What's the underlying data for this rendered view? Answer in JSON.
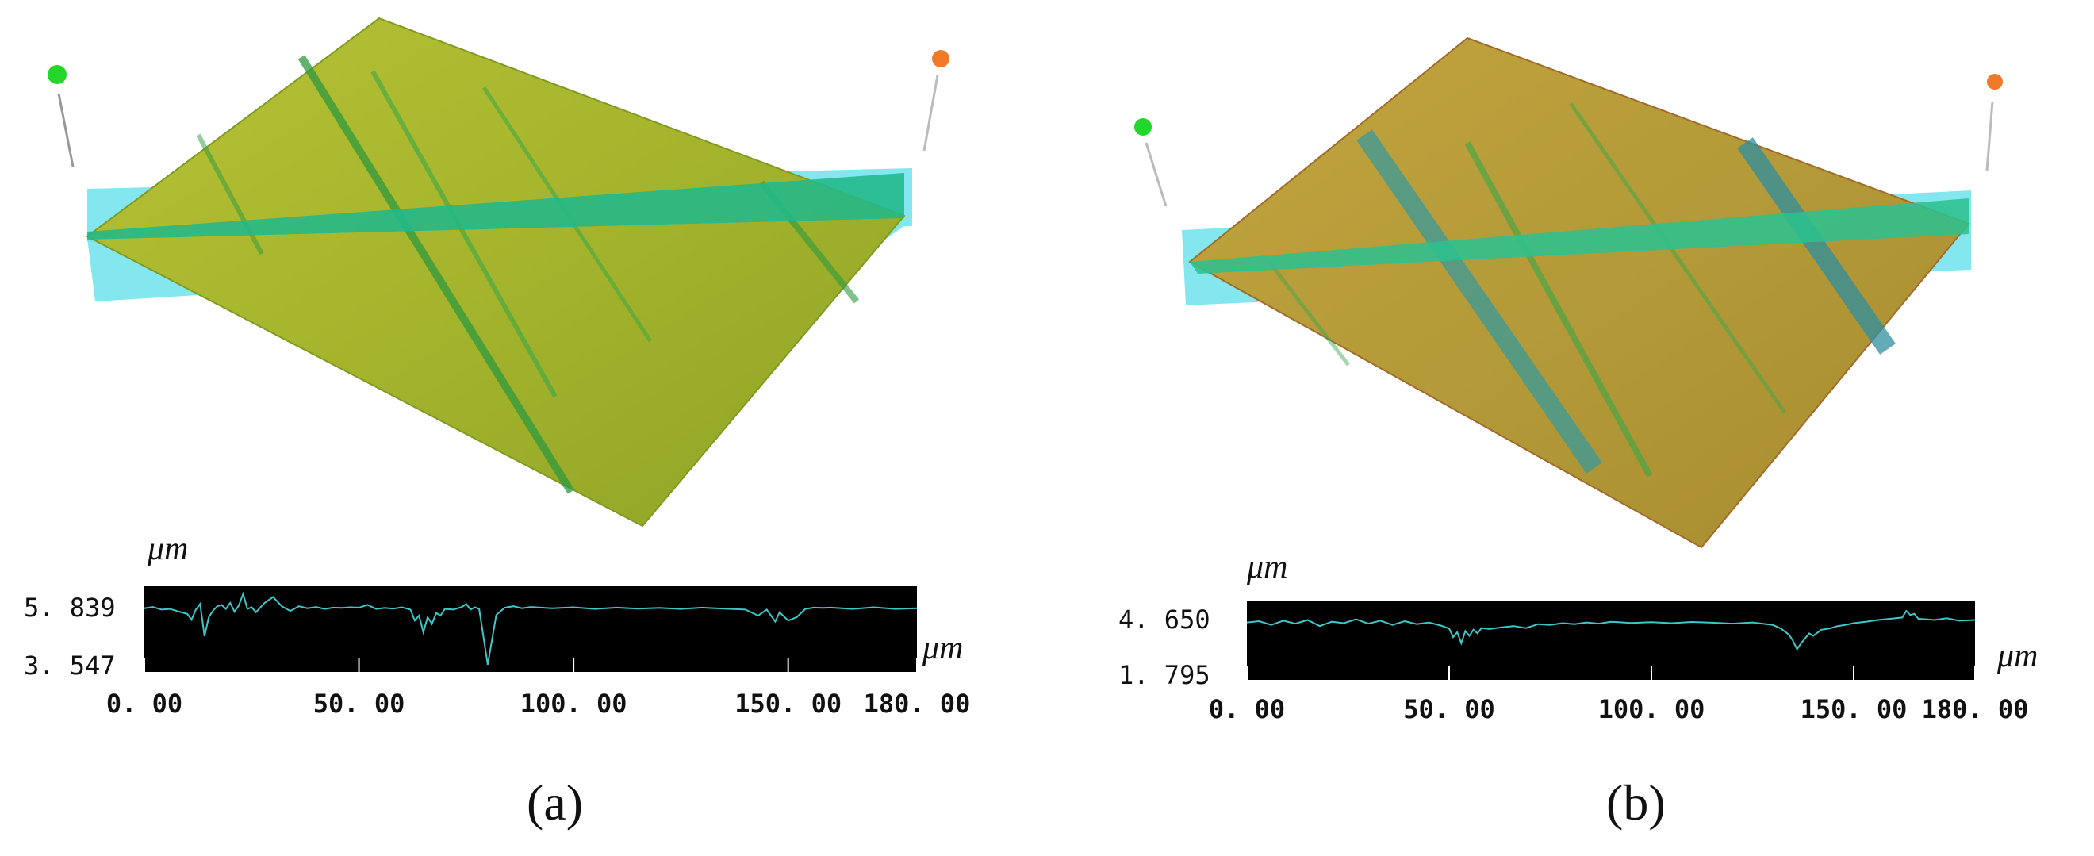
{
  "figure": {
    "panel_a_label": "(a)",
    "panel_b_label": "(b)"
  },
  "panels": [
    {
      "id": "a",
      "surface_colors": {
        "base": "#a5b42c",
        "dark": "#7f9a22",
        "band": "#21b88a",
        "scan_plane": "#6fe3ec",
        "groove": "#2f9a3e"
      },
      "marker_colors": {
        "start": "#22d62a",
        "end": "#f07a2a"
      }
    },
    {
      "id": "b",
      "surface_colors": {
        "base": "#b3a33a",
        "dark": "#a06b2a",
        "band": "#2cc08e",
        "scan_plane": "#6fe3ec",
        "groove": "#3a9a9a"
      },
      "marker_colors": {
        "start": "#22d62a",
        "end": "#f07a2a"
      }
    }
  ],
  "chart_data": [
    {
      "type": "line",
      "title": "",
      "x_unit_label": "μm",
      "y_unit_label": "μm",
      "x_tick_labels": [
        "0. 00",
        "50. 00",
        "100. 00",
        "150. 00",
        "180. 00"
      ],
      "x_ticks": [
        0,
        50,
        100,
        150,
        180
      ],
      "y_tick_labels": [
        "5. 839",
        "3. 547"
      ],
      "ylim": [
        3.547,
        5.839
      ],
      "xlim": [
        0,
        180
      ],
      "grid": false,
      "background": "#000000",
      "line_color": "#3fc6c8",
      "series": [
        {
          "x": [
            0,
            2,
            4,
            6,
            8,
            10,
            11,
            12,
            13,
            14,
            15,
            16,
            17,
            18,
            19,
            20,
            21,
            22,
            23,
            24,
            25,
            26,
            28,
            30,
            32,
            34,
            36,
            38,
            40,
            42,
            44,
            46,
            48,
            50,
            52,
            54,
            56,
            58,
            60,
            62,
            63,
            64,
            65,
            66,
            67,
            68,
            69,
            70,
            72,
            74,
            75,
            76,
            77,
            78,
            80,
            82,
            84,
            86,
            88,
            90,
            95,
            100,
            105,
            110,
            115,
            120,
            125,
            130,
            135,
            140,
            143,
            145,
            147,
            148,
            150,
            152,
            154,
            156,
            158,
            160,
            165,
            170,
            175,
            180
          ],
          "y": [
            5.32,
            5.36,
            5.28,
            5.3,
            5.22,
            5.15,
            4.98,
            5.28,
            5.45,
            4.48,
            5.05,
            5.25,
            5.38,
            5.42,
            5.3,
            5.48,
            5.22,
            5.4,
            5.75,
            5.3,
            5.35,
            5.2,
            5.48,
            5.66,
            5.38,
            5.24,
            5.38,
            5.32,
            5.36,
            5.3,
            5.34,
            5.33,
            5.35,
            5.34,
            5.42,
            5.3,
            5.33,
            5.31,
            5.35,
            5.28,
            4.95,
            5.1,
            4.6,
            5.05,
            4.85,
            5.18,
            5.1,
            5.3,
            5.28,
            5.36,
            5.45,
            5.28,
            5.35,
            5.3,
            3.62,
            5.12,
            5.34,
            5.38,
            5.32,
            5.36,
            5.32,
            5.35,
            5.3,
            5.34,
            5.31,
            5.33,
            5.3,
            5.34,
            5.31,
            5.28,
            5.1,
            5.28,
            4.92,
            5.2,
            4.95,
            5.05,
            5.3,
            5.34,
            5.33,
            5.34,
            5.3,
            5.35,
            5.3,
            5.32
          ]
        }
      ]
    },
    {
      "type": "line",
      "title": "",
      "x_unit_label": "μm",
      "y_unit_label": "μm",
      "x_tick_labels": [
        "0. 00",
        "50. 00",
        "100. 00",
        "150. 00",
        "180. 00"
      ],
      "x_ticks": [
        0,
        50,
        100,
        150,
        180
      ],
      "y_tick_labels": [
        "4. 650",
        "1. 795"
      ],
      "ylim": [
        1.795,
        4.65
      ],
      "xlim": [
        0,
        180
      ],
      "grid": false,
      "background": "#000000",
      "line_color": "#3fc6c8",
      "series": [
        {
          "x": [
            0,
            3,
            6,
            9,
            12,
            15,
            18,
            21,
            24,
            27,
            30,
            33,
            36,
            39,
            42,
            45,
            48,
            50,
            51,
            52,
            53,
            54,
            55,
            56,
            57,
            58,
            60,
            63,
            66,
            69,
            72,
            75,
            78,
            81,
            84,
            87,
            90,
            95,
            100,
            105,
            110,
            115,
            120,
            125,
            130,
            132,
            134,
            135,
            136,
            137,
            138,
            139,
            140,
            142,
            144,
            146,
            148,
            150,
            153,
            156,
            159,
            162,
            163,
            164,
            165,
            166,
            168,
            170,
            173,
            176,
            180
          ],
          "y": [
            3.95,
            4.0,
            3.85,
            4.02,
            3.9,
            4.05,
            3.8,
            3.98,
            3.92,
            4.08,
            3.9,
            4.02,
            3.85,
            4.0,
            3.88,
            3.95,
            3.82,
            3.7,
            3.35,
            3.55,
            3.1,
            3.6,
            3.4,
            3.65,
            3.5,
            3.72,
            3.68,
            3.75,
            3.8,
            3.72,
            3.88,
            3.85,
            3.92,
            3.88,
            3.95,
            3.9,
            3.98,
            3.93,
            3.96,
            3.92,
            3.97,
            3.94,
            3.9,
            3.95,
            3.85,
            3.7,
            3.45,
            3.2,
            2.85,
            3.1,
            3.3,
            3.5,
            3.4,
            3.65,
            3.7,
            3.8,
            3.85,
            3.92,
            3.98,
            4.05,
            4.1,
            4.15,
            4.42,
            4.25,
            4.3,
            4.1,
            4.08,
            4.05,
            4.12,
            4.02,
            4.05
          ]
        }
      ]
    }
  ]
}
